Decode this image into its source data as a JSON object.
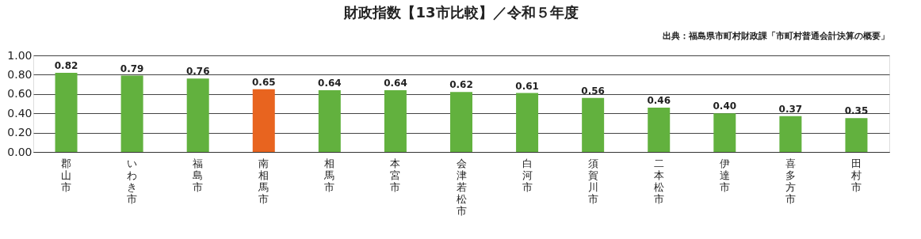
{
  "chart_data": {
    "type": "bar",
    "title": "財政指数【13市比較】／令和５年度",
    "annotations": [
      "出典：福島県市町村財政課「市町村普通会計決算の概要」"
    ],
    "categories": [
      "郡山市",
      "いわき市",
      "福島市",
      "南相馬市",
      "相馬市",
      "本宮市",
      "会津若松市",
      "白河市",
      "須賀川市",
      "二本松市",
      "伊達市",
      "喜多方市",
      "田村市"
    ],
    "values": [
      0.82,
      0.79,
      0.76,
      0.65,
      0.64,
      0.64,
      0.62,
      0.61,
      0.56,
      0.46,
      0.4,
      0.37,
      0.35
    ],
    "colors": [
      "#62b13e",
      "#62b13e",
      "#62b13e",
      "#e8641f",
      "#62b13e",
      "#62b13e",
      "#62b13e",
      "#62b13e",
      "#62b13e",
      "#62b13e",
      "#62b13e",
      "#62b13e",
      "#62b13e"
    ],
    "ylim": [
      0,
      1
    ],
    "yticks": [
      {
        "value": 0,
        "label": "0.00"
      },
      {
        "value": 0.2,
        "label": "0.20"
      },
      {
        "value": 0.4,
        "label": "0.40"
      },
      {
        "value": 0.6,
        "label": "0.60"
      },
      {
        "value": 0.8,
        "label": "0.80"
      },
      {
        "value": 1,
        "label": "1.00"
      }
    ],
    "value_labels": [
      "0.82",
      "0.79",
      "0.76",
      "0.65",
      "0.64",
      "0.64",
      "0.62",
      "0.61",
      "0.56",
      "0.46",
      "0.40",
      "0.37",
      "0.35"
    ],
    "grid": "y"
  }
}
